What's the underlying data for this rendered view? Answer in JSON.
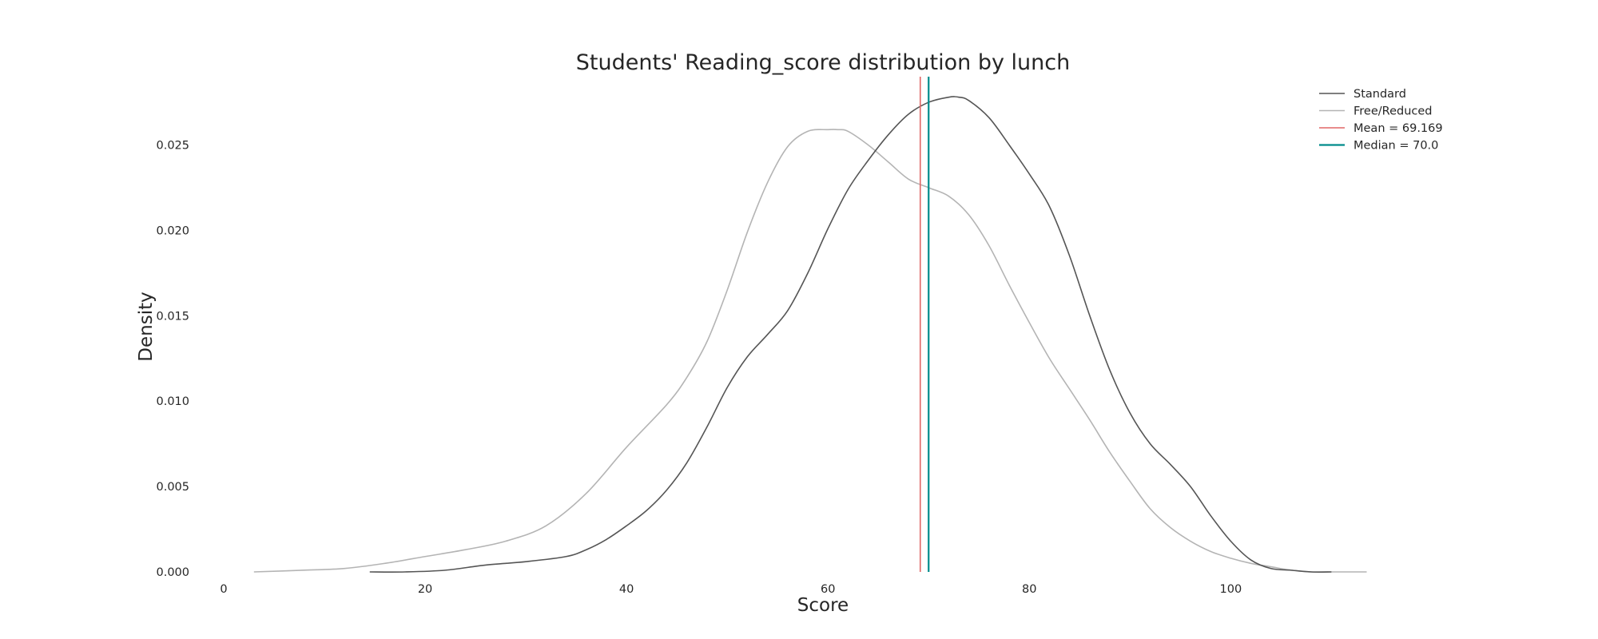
{
  "chart_data": {
    "type": "line",
    "title": "Students' Reading_score distribution by lunch",
    "xlabel": "Score",
    "ylabel": "Density",
    "xlim": [
      0,
      116
    ],
    "ylim": [
      0,
      0.029
    ],
    "grid": false,
    "legend_placement": "top-right",
    "xticks": [
      0,
      20,
      40,
      60,
      80,
      100
    ],
    "yticks": [
      0.0,
      0.005,
      0.01,
      0.015,
      0.02,
      0.025
    ],
    "ytick_labels": [
      "0.000",
      "0.005",
      "0.010",
      "0.015",
      "0.020",
      "0.025"
    ],
    "series": [
      {
        "name": "Standard",
        "color": "#555555",
        "x": [
          14.5,
          18,
          22,
          26,
          30,
          34,
          36,
          38,
          40,
          42,
          44,
          46,
          48,
          50,
          52,
          54,
          56,
          58,
          60,
          62,
          64,
          66,
          68,
          70,
          72,
          73,
          74,
          76,
          78,
          80,
          82,
          84,
          86,
          88,
          90,
          92,
          94,
          96,
          98,
          100,
          102,
          104,
          106,
          108,
          110
        ],
        "y": [
          0.0,
          0.0,
          0.0001,
          0.0004,
          0.0006,
          0.0009,
          0.0013,
          0.0019,
          0.0027,
          0.0036,
          0.0048,
          0.0064,
          0.0085,
          0.0108,
          0.0126,
          0.0139,
          0.0153,
          0.0175,
          0.0201,
          0.0224,
          0.0241,
          0.0256,
          0.0268,
          0.0275,
          0.0278,
          0.0278,
          0.0276,
          0.0266,
          0.025,
          0.0233,
          0.0214,
          0.0185,
          0.015,
          0.0118,
          0.0093,
          0.0075,
          0.0063,
          0.005,
          0.0033,
          0.0018,
          0.0007,
          0.0002,
          0.0001,
          0.0,
          0.0
        ]
      },
      {
        "name": "Free/Reduced",
        "color": "#b4b4b4",
        "x": [
          3,
          8,
          12,
          16,
          20,
          24,
          28,
          32,
          36,
          40,
          44,
          46,
          48,
          50,
          52,
          54,
          56,
          58,
          60,
          61,
          62,
          64,
          66,
          68,
          70,
          72,
          74,
          76,
          78,
          80,
          82,
          84,
          86,
          88,
          90,
          92,
          94,
          96,
          98,
          100,
          102,
          104,
          106,
          108,
          110,
          113.5
        ],
        "y": [
          0.0,
          0.0001,
          0.0002,
          0.0005,
          0.0009,
          0.0013,
          0.0018,
          0.0027,
          0.0046,
          0.0073,
          0.0098,
          0.0114,
          0.0135,
          0.0165,
          0.0199,
          0.0228,
          0.0249,
          0.0258,
          0.0259,
          0.0259,
          0.0258,
          0.025,
          0.024,
          0.023,
          0.0225,
          0.022,
          0.0209,
          0.0191,
          0.0168,
          0.0146,
          0.0125,
          0.0107,
          0.0089,
          0.007,
          0.0053,
          0.0037,
          0.0026,
          0.0018,
          0.0012,
          0.0008,
          0.0005,
          0.0003,
          0.0001,
          0.0,
          0.0,
          0.0
        ]
      }
    ],
    "reference_lines": [
      {
        "label": "Mean = 69.169",
        "value": 69.169,
        "color": "#e06666"
      },
      {
        "label": "Median = 70.0",
        "value": 70.0,
        "color": "#008b8b"
      }
    ]
  }
}
